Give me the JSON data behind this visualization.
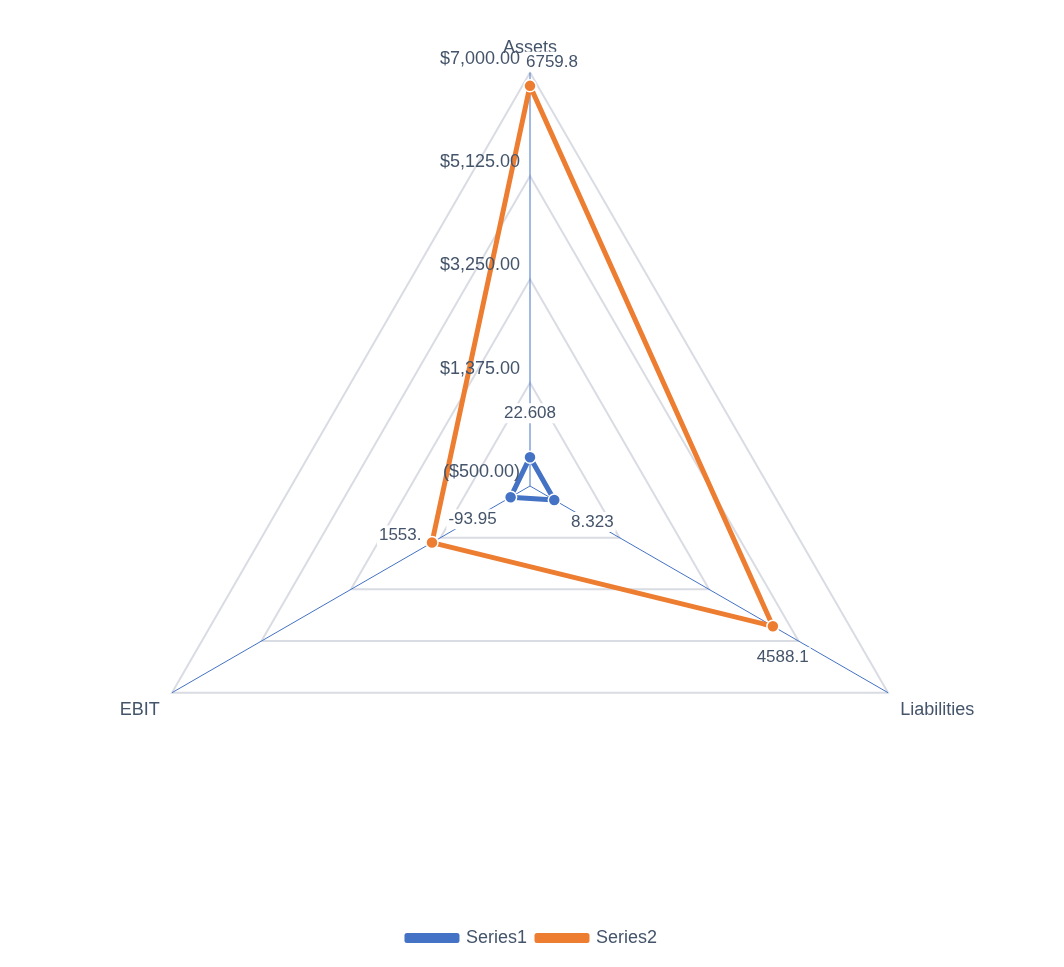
{
  "chart_data": {
    "type": "radar",
    "categories": [
      "Assets",
      "Liabilities",
      "EBIT"
    ],
    "series": [
      {
        "name": "Series1",
        "color": "#4472c4",
        "values": [
          22.608,
          8.323,
          -93.95
        ],
        "value_labels": [
          "22.608",
          "8.323",
          "-93.95"
        ]
      },
      {
        "name": "Series2",
        "color": "#ed7d31",
        "values": [
          6759.8,
          4588.1,
          1553
        ],
        "value_labels": [
          "6759.8",
          "4588.1",
          "1553."
        ]
      }
    ],
    "ylim": [
      -500,
      7000
    ],
    "yticks": [
      {
        "value": -500,
        "label": "($500.00)"
      },
      {
        "value": 1375,
        "label": "$1,375.00"
      },
      {
        "value": 3250,
        "label": "$3,250.00"
      },
      {
        "value": 5125,
        "label": "$5,125.00"
      },
      {
        "value": 7000,
        "label": "$7,000.00"
      }
    ],
    "grid": true,
    "legend": "bottom",
    "marker": "circle"
  }
}
